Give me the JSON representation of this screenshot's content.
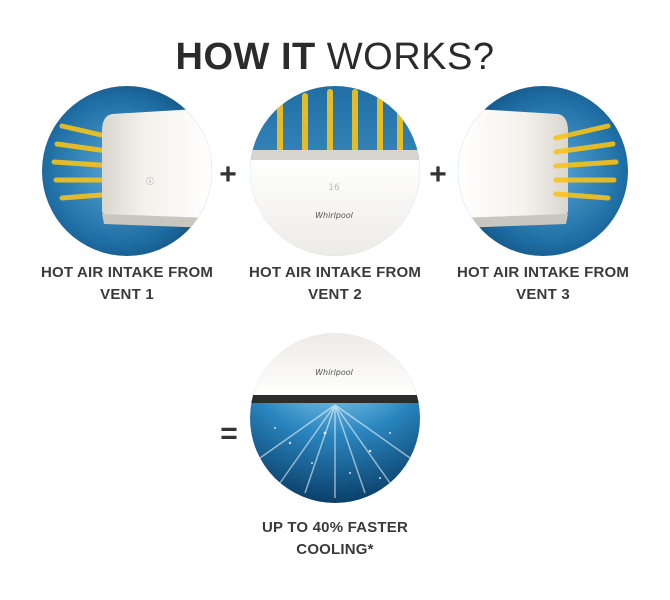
{
  "heading": {
    "bold": "HOW IT",
    "light": "WORKS?"
  },
  "steps": [
    {
      "line1": "HOT AIR INTAKE FROM",
      "line2": "VENT 1"
    },
    {
      "line1": "HOT AIR INTAKE FROM",
      "line2": "VENT 2"
    },
    {
      "line1": "HOT AIR INTAKE FROM",
      "line2": "VENT 3"
    }
  ],
  "operators": {
    "plus": "+",
    "equals": "="
  },
  "result": {
    "line1": "UP TO 40% FASTER",
    "line2": "COOLING*"
  },
  "brand_text": "Whirlpool",
  "colors": {
    "air_yellow": "#f7c21a",
    "sky_blue": "#1f6fa6",
    "deep_blue": "#0c3d68",
    "unit_white": "#f4f2ec"
  }
}
